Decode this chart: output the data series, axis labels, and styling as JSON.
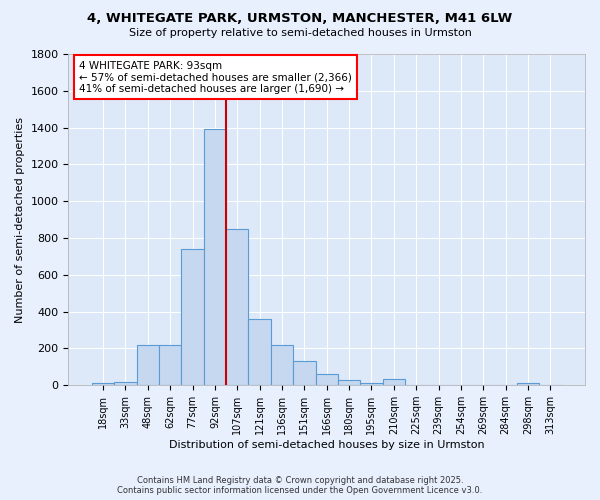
{
  "title_line1": "4, WHITEGATE PARK, URMSTON, MANCHESTER, M41 6LW",
  "title_line2": "Size of property relative to semi-detached houses in Urmston",
  "xlabel": "Distribution of semi-detached houses by size in Urmston",
  "ylabel": "Number of semi-detached properties",
  "bar_labels": [
    "18sqm",
    "33sqm",
    "48sqm",
    "62sqm",
    "77sqm",
    "92sqm",
    "107sqm",
    "121sqm",
    "136sqm",
    "151sqm",
    "166sqm",
    "180sqm",
    "195sqm",
    "210sqm",
    "225sqm",
    "239sqm",
    "254sqm",
    "269sqm",
    "284sqm",
    "298sqm",
    "313sqm"
  ],
  "bar_values": [
    10,
    20,
    220,
    220,
    740,
    1390,
    850,
    360,
    220,
    130,
    60,
    30,
    10,
    35,
    0,
    0,
    0,
    0,
    0,
    10,
    0
  ],
  "bar_color": "#c5d8f0",
  "bar_edge_color": "#5b9bd5",
  "vline_color": "#cc0000",
  "annotation_text": "4 WHITEGATE PARK: 93sqm\n← 57% of semi-detached houses are smaller (2,366)\n41% of semi-detached houses are larger (1,690) →",
  "ylim": [
    0,
    1800
  ],
  "yticks": [
    0,
    200,
    400,
    600,
    800,
    1000,
    1200,
    1400,
    1600,
    1800
  ],
  "footer_line1": "Contains HM Land Registry data © Crown copyright and database right 2025.",
  "footer_line2": "Contains public sector information licensed under the Open Government Licence v3.0.",
  "background_color": "#e8f0fe",
  "grid_color": "#ffffff",
  "plot_bg_color": "#dde8f8"
}
